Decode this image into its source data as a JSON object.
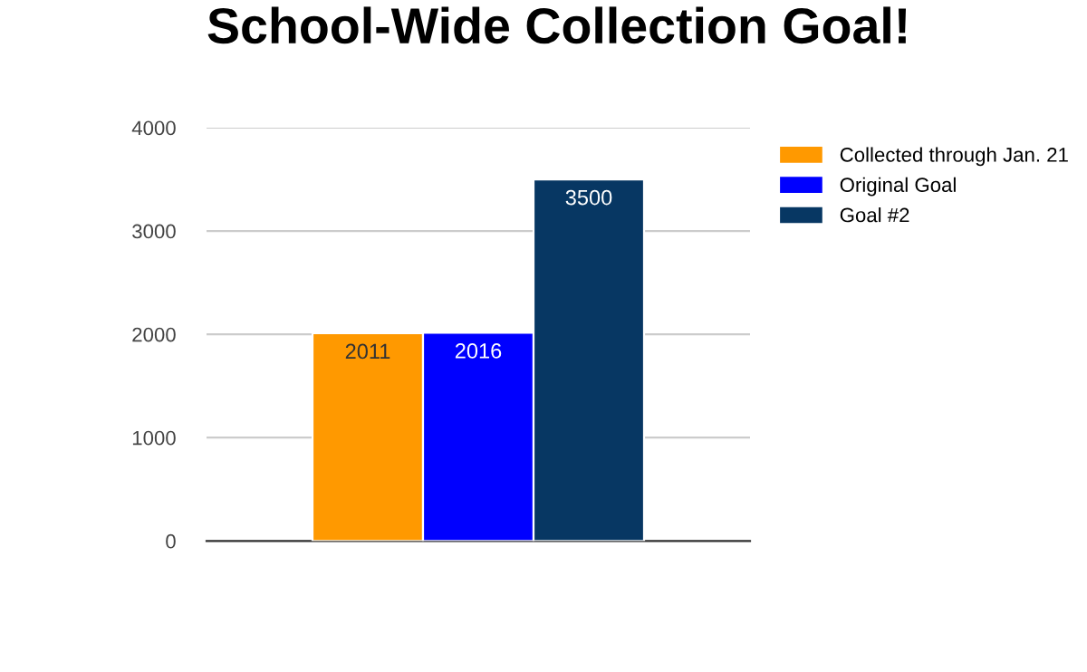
{
  "chart_data": {
    "type": "bar",
    "title": "School-Wide Collection Goal!",
    "categories": [
      null
    ],
    "series": [
      {
        "name": "Collected through Jan. 21",
        "color": "#ff9900",
        "values": [
          2011
        ]
      },
      {
        "name": "Original Goal",
        "color": "#0000ff",
        "values": [
          2016
        ]
      },
      {
        "name": "Goal #2",
        "color": "#073763",
        "values": [
          3500
        ]
      }
    ],
    "ylim": [
      0,
      4000
    ],
    "yticks": [
      0,
      1000,
      2000,
      3000,
      4000
    ],
    "grid": "y",
    "legend": "right",
    "data_labels": true
  }
}
